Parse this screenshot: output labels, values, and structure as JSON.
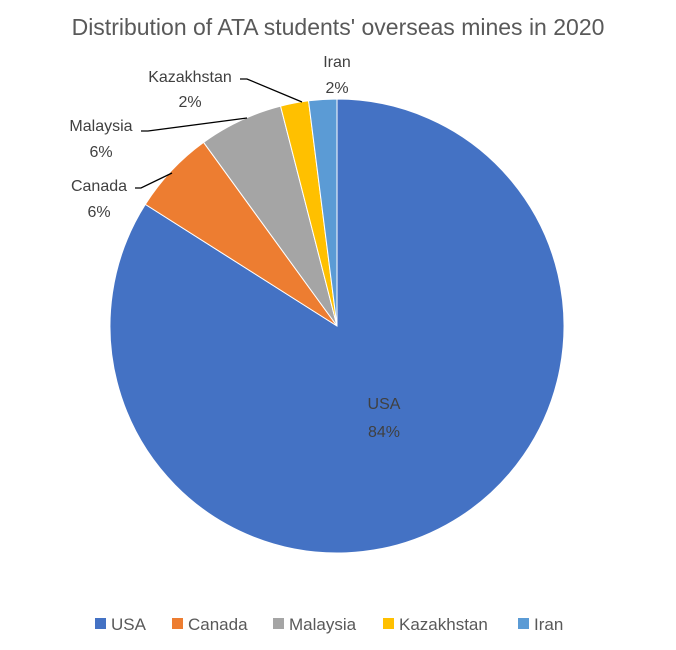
{
  "chart_data": {
    "type": "pie",
    "title": "Distribution of ATA students' overseas mines in 2020",
    "categories": [
      "USA",
      "Canada",
      "Malaysia",
      "Kazakhstan",
      "Iran"
    ],
    "values": [
      84,
      6,
      6,
      2,
      2
    ],
    "value_labels": [
      "84%",
      "6%",
      "6%",
      "2%",
      "2%"
    ],
    "colors": [
      "#4472C4",
      "#ED7D31",
      "#A5A5A5",
      "#FFC000",
      "#5B9BD5"
    ],
    "start_angle_deg": 0,
    "direction": "clockwise",
    "legend_position": "bottom"
  }
}
